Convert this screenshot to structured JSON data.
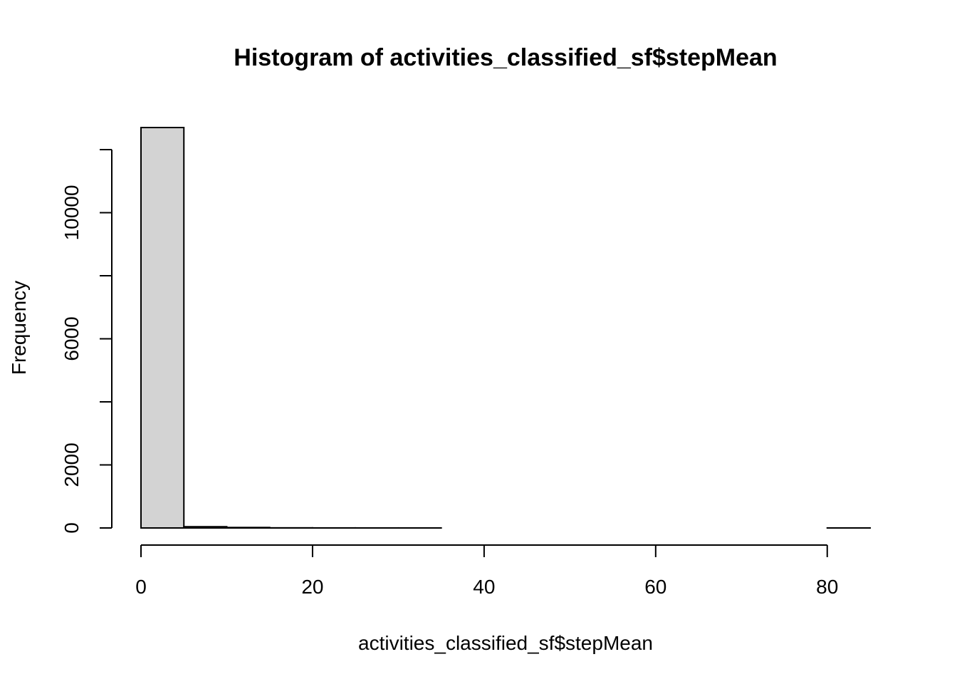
{
  "chart_data": {
    "type": "bar",
    "title": "Histogram of activities_classified_sf$stepMean",
    "xlabel": "activities_classified_sf$stepMean",
    "ylabel": "Frequency",
    "xlim": [
      0,
      85
    ],
    "ylim": [
      0,
      12700
    ],
    "x_ticks": [
      0,
      20,
      40,
      60,
      80
    ],
    "y_ticks": [
      0,
      2000,
      6000,
      10000
    ],
    "y_tick_marks": [
      0,
      2000,
      4000,
      6000,
      8000,
      10000,
      12000
    ],
    "bin_edges": [
      0,
      5,
      10,
      15,
      20,
      25,
      30,
      35,
      40,
      45,
      50,
      55,
      60,
      65,
      70,
      75,
      80,
      85
    ],
    "counts": [
      12700,
      40,
      15,
      4,
      2,
      1,
      1,
      0,
      0,
      0,
      0,
      0,
      0,
      0,
      0,
      0,
      1
    ],
    "bar_fill": "#d3d3d3",
    "grid": false
  }
}
